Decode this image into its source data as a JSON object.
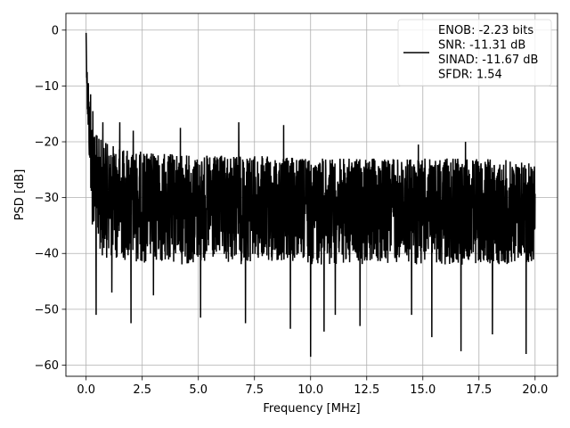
{
  "chart_data": {
    "type": "line",
    "title": "",
    "xlabel": "Frequency [MHz]",
    "ylabel": "PSD [dB]",
    "xlim": [
      -0.9,
      21.0
    ],
    "ylim": [
      -62,
      3
    ],
    "xticks": [
      0.0,
      2.5,
      5.0,
      7.5,
      10.0,
      12.5,
      15.0,
      17.5,
      20.0
    ],
    "xtick_labels": [
      "0.0",
      "2.5",
      "5.0",
      "7.5",
      "10.0",
      "12.5",
      "15.0",
      "17.5",
      "20.0"
    ],
    "yticks": [
      0,
      -10,
      -20,
      -30,
      -40,
      -50,
      -60
    ],
    "ytick_labels": [
      "0",
      "−10",
      "−20",
      "−30",
      "−40",
      "−50",
      "−60"
    ],
    "grid": true,
    "legend": {
      "location": "top-right",
      "entries": [
        "ENOB: -2.23 bits",
        "SNR: -11.31 dB",
        "SINAD: -11.67 dB",
        "SFDR: 1.54"
      ]
    },
    "series": [
      {
        "color": "#000000",
        "envelope": {
          "x": [
            0.0,
            0.05,
            0.1,
            0.2,
            0.3,
            0.5,
            1.0,
            2.0,
            3.0,
            5.0,
            7.5,
            10.0,
            12.5,
            15.0,
            17.5,
            20.0
          ],
          "upper": [
            -1,
            -6,
            -10,
            -15,
            -17,
            -19,
            -20.5,
            -21.5,
            -22,
            -22.5,
            -22.5,
            -23,
            -23,
            -23,
            -23,
            -23.5
          ],
          "lower": [
            -3,
            -15,
            -20,
            -30,
            -37,
            -40,
            -41,
            -41.5,
            -42,
            -42,
            -42,
            -42,
            -42,
            -42,
            -42,
            -42
          ]
        },
        "peaks": [
          {
            "x": 0.0,
            "y": -0.5
          },
          {
            "x": 0.05,
            "y": -7.5
          },
          {
            "x": 0.1,
            "y": -9.5
          },
          {
            "x": 0.2,
            "y": -11.5
          },
          {
            "x": 0.3,
            "y": -14.5
          },
          {
            "x": 0.75,
            "y": -16.5
          },
          {
            "x": 1.5,
            "y": -16.5
          },
          {
            "x": 2.1,
            "y": -18
          },
          {
            "x": 4.2,
            "y": -17.5
          },
          {
            "x": 6.8,
            "y": -16.5
          },
          {
            "x": 8.8,
            "y": -17
          },
          {
            "x": 12.2,
            "y": -19.5
          },
          {
            "x": 14.8,
            "y": -20.5
          },
          {
            "x": 16.9,
            "y": -20
          }
        ],
        "dips": [
          {
            "x": 0.45,
            "y": -51
          },
          {
            "x": 1.15,
            "y": -47
          },
          {
            "x": 2.0,
            "y": -52.5
          },
          {
            "x": 3.0,
            "y": -47.5
          },
          {
            "x": 5.1,
            "y": -51.5
          },
          {
            "x": 7.1,
            "y": -52.5
          },
          {
            "x": 9.1,
            "y": -53.5
          },
          {
            "x": 10.0,
            "y": -58.5
          },
          {
            "x": 10.6,
            "y": -54
          },
          {
            "x": 11.1,
            "y": -51
          },
          {
            "x": 12.2,
            "y": -53
          },
          {
            "x": 14.5,
            "y": -51
          },
          {
            "x": 15.4,
            "y": -55
          },
          {
            "x": 16.7,
            "y": -57.5
          },
          {
            "x": 18.1,
            "y": -54.5
          },
          {
            "x": 19.6,
            "y": -58
          }
        ]
      }
    ]
  }
}
